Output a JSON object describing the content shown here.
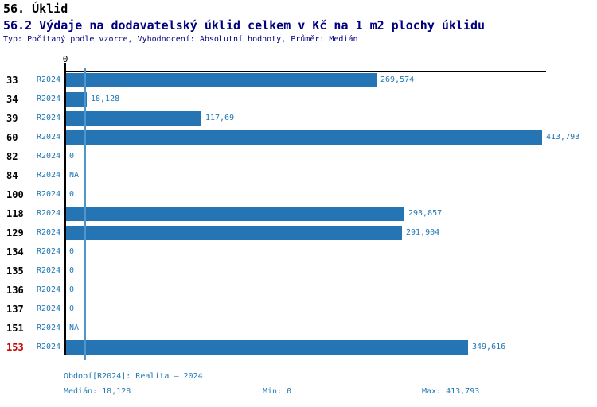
{
  "header": {
    "title": "56. Úklid",
    "subtitle": "56.2 Výdaje na dodavatelský úklid celkem v Kč na 1 m2 plochy úklidu",
    "meta": "Typ: Počítaný podle vzorce, Vyhodnocení: Absolutní hodnoty, Průměr: Medián"
  },
  "chart_data": {
    "type": "bar",
    "orientation": "horizontal",
    "title": "56.2 Výdaje na dodavatelský úklid celkem v Kč na 1 m2 plochy úklidu",
    "xlabel": "",
    "ylabel": "",
    "axis": {
      "zero_label": "0",
      "min": 0,
      "max": 413793,
      "gridlines": false
    },
    "series_name": "R2024",
    "median_value": 18128,
    "rows": [
      {
        "id": "33",
        "series": "R2024",
        "label": "269,574",
        "value": 269574,
        "highlight": false
      },
      {
        "id": "34",
        "series": "R2024",
        "label": "18,128",
        "value": 18128,
        "highlight": false
      },
      {
        "id": "39",
        "series": "R2024",
        "label": "117,69",
        "value": 117690,
        "highlight": false
      },
      {
        "id": "60",
        "series": "R2024",
        "label": "413,793",
        "value": 413793,
        "highlight": false
      },
      {
        "id": "82",
        "series": "R2024",
        "label": "0",
        "value": 0,
        "highlight": false
      },
      {
        "id": "84",
        "series": "R2024",
        "label": "NA",
        "value": null,
        "highlight": false
      },
      {
        "id": "100",
        "series": "R2024",
        "label": "0",
        "value": 0,
        "highlight": false
      },
      {
        "id": "118",
        "series": "R2024",
        "label": "293,857",
        "value": 293857,
        "highlight": false
      },
      {
        "id": "129",
        "series": "R2024",
        "label": "291,904",
        "value": 291904,
        "highlight": false
      },
      {
        "id": "134",
        "series": "R2024",
        "label": "0",
        "value": 0,
        "highlight": false
      },
      {
        "id": "135",
        "series": "R2024",
        "label": "0",
        "value": 0,
        "highlight": false
      },
      {
        "id": "136",
        "series": "R2024",
        "label": "0",
        "value": 0,
        "highlight": false
      },
      {
        "id": "137",
        "series": "R2024",
        "label": "0",
        "value": 0,
        "highlight": false
      },
      {
        "id": "151",
        "series": "R2024",
        "label": "NA",
        "value": null,
        "highlight": false
      },
      {
        "id": "153",
        "series": "R2024",
        "label": "349,616",
        "value": 349616,
        "highlight": true
      }
    ]
  },
  "footer": {
    "period": "Období[R2024]: Realita – 2024",
    "median": "Medián: 18,128",
    "min": "Min: 0",
    "max": "Max: 413,793"
  },
  "colors": {
    "bar": "#2575b4",
    "text_blue": "#1f77b4",
    "median_line": "#4f97cb",
    "subtitle_navy": "#000080",
    "highlight_red": "#cc0000",
    "axis_black": "#000000",
    "background": "#ffffff"
  }
}
